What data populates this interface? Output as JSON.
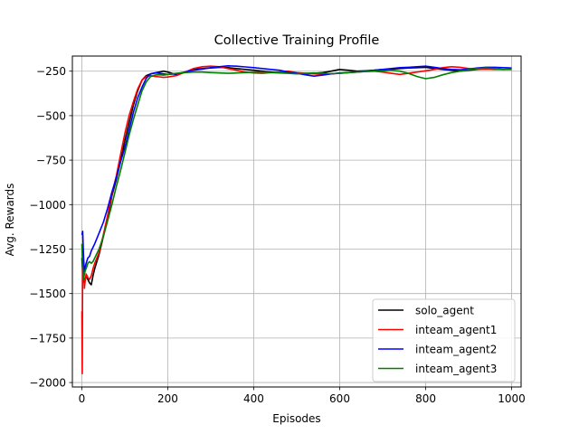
{
  "chart_data": {
    "type": "line",
    "title": "Collective Training Profile",
    "xlabel": "Episodes",
    "ylabel": "Avg. Rewards",
    "xlim": [
      -22,
      1022
    ],
    "ylim": [
      -2025,
      -165
    ],
    "x_ticks": [
      0,
      200,
      400,
      600,
      800,
      1000
    ],
    "x_tick_labels": [
      "0",
      "200",
      "400",
      "600",
      "800",
      "1000"
    ],
    "y_ticks": [
      -250,
      -500,
      -750,
      -1000,
      -1250,
      -1500,
      -1750,
      -2000
    ],
    "y_tick_labels": [
      "−250",
      "−500",
      "−750",
      "−1000",
      "−1250",
      "−1500",
      "−1750",
      "−2000"
    ],
    "grid": true,
    "legend_position": "lower-right",
    "series": [
      {
        "name": "solo_agent",
        "color": "#000000",
        "x": [
          0,
          2,
          4,
          6,
          8,
          10,
          14,
          18,
          22,
          26,
          30,
          40,
          50,
          60,
          70,
          80,
          90,
          100,
          110,
          120,
          130,
          140,
          150,
          160,
          170,
          180,
          190,
          200,
          220,
          240,
          260,
          280,
          300,
          320,
          340,
          360,
          380,
          400,
          420,
          440,
          460,
          480,
          500,
          520,
          540,
          560,
          580,
          600,
          620,
          640,
          660,
          680,
          700,
          720,
          740,
          760,
          780,
          800,
          820,
          840,
          860,
          880,
          900,
          920,
          940,
          960,
          980,
          1000
        ],
        "y": [
          -1300,
          -1380,
          -1430,
          -1440,
          -1420,
          -1400,
          -1420,
          -1440,
          -1450,
          -1400,
          -1360,
          -1280,
          -1180,
          -1080,
          -950,
          -860,
          -760,
          -640,
          -540,
          -440,
          -360,
          -300,
          -275,
          -265,
          -260,
          -255,
          -250,
          -255,
          -270,
          -255,
          -240,
          -235,
          -232,
          -228,
          -230,
          -235,
          -240,
          -245,
          -250,
          -255,
          -258,
          -260,
          -262,
          -265,
          -262,
          -258,
          -250,
          -240,
          -245,
          -250,
          -248,
          -245,
          -240,
          -238,
          -235,
          -232,
          -230,
          -228,
          -235,
          -240,
          -245,
          -250,
          -245,
          -240,
          -235,
          -238,
          -240,
          -240
        ]
      },
      {
        "name": "inteam_agent1",
        "color": "#ff0000",
        "x": [
          0,
          1,
          2,
          4,
          6,
          8,
          10,
          14,
          18,
          22,
          26,
          30,
          40,
          50,
          60,
          70,
          80,
          90,
          100,
          110,
          120,
          130,
          140,
          150,
          160,
          170,
          180,
          190,
          200,
          220,
          240,
          260,
          280,
          300,
          320,
          340,
          360,
          380,
          400,
          420,
          440,
          460,
          480,
          500,
          520,
          540,
          560,
          580,
          600,
          620,
          640,
          660,
          680,
          700,
          720,
          740,
          760,
          780,
          800,
          820,
          840,
          860,
          880,
          900,
          920,
          940,
          960,
          980,
          1000
        ],
        "y": [
          -1600,
          -1950,
          -1300,
          -1360,
          -1470,
          -1420,
          -1390,
          -1410,
          -1420,
          -1400,
          -1360,
          -1330,
          -1270,
          -1170,
          -1060,
          -940,
          -840,
          -720,
          -600,
          -500,
          -420,
          -350,
          -300,
          -280,
          -275,
          -280,
          -282,
          -285,
          -283,
          -275,
          -255,
          -235,
          -225,
          -222,
          -225,
          -235,
          -245,
          -255,
          -260,
          -262,
          -258,
          -255,
          -250,
          -258,
          -262,
          -265,
          -268,
          -265,
          -262,
          -258,
          -255,
          -252,
          -250,
          -255,
          -262,
          -268,
          -262,
          -255,
          -248,
          -240,
          -230,
          -225,
          -228,
          -235,
          -240,
          -238,
          -240,
          -240,
          -238
        ]
      },
      {
        "name": "inteam_agent2",
        "color": "#0000ff",
        "x": [
          0,
          2,
          4,
          6,
          8,
          10,
          14,
          18,
          22,
          26,
          30,
          40,
          50,
          60,
          70,
          80,
          90,
          100,
          110,
          120,
          130,
          140,
          150,
          160,
          170,
          180,
          190,
          200,
          220,
          240,
          260,
          280,
          300,
          320,
          340,
          360,
          380,
          400,
          420,
          440,
          460,
          480,
          500,
          520,
          540,
          560,
          580,
          600,
          620,
          640,
          660,
          680,
          700,
          720,
          740,
          760,
          780,
          800,
          820,
          840,
          860,
          880,
          900,
          920,
          940,
          960,
          980,
          1000
        ],
        "y": [
          -1170,
          -1150,
          -1300,
          -1380,
          -1350,
          -1330,
          -1300,
          -1290,
          -1260,
          -1240,
          -1220,
          -1160,
          -1100,
          -1020,
          -930,
          -850,
          -760,
          -680,
          -580,
          -480,
          -400,
          -340,
          -290,
          -265,
          -260,
          -262,
          -265,
          -268,
          -265,
          -255,
          -245,
          -238,
          -230,
          -225,
          -220,
          -222,
          -226,
          -230,
          -235,
          -240,
          -245,
          -255,
          -262,
          -270,
          -278,
          -272,
          -265,
          -260,
          -258,
          -255,
          -250,
          -245,
          -240,
          -235,
          -230,
          -228,
          -225,
          -222,
          -228,
          -235,
          -240,
          -242,
          -238,
          -232,
          -228,
          -228,
          -230,
          -232
        ]
      },
      {
        "name": "inteam_agent3",
        "color": "#008000",
        "x": [
          0,
          2,
          4,
          6,
          8,
          10,
          14,
          18,
          22,
          26,
          30,
          40,
          50,
          60,
          70,
          80,
          90,
          100,
          110,
          120,
          130,
          140,
          150,
          160,
          170,
          180,
          190,
          200,
          220,
          240,
          260,
          280,
          300,
          320,
          340,
          360,
          380,
          400,
          420,
          440,
          460,
          480,
          500,
          520,
          540,
          560,
          580,
          600,
          620,
          640,
          660,
          680,
          700,
          720,
          740,
          760,
          780,
          800,
          820,
          840,
          860,
          880,
          900,
          920,
          940,
          960,
          980,
          1000
        ],
        "y": [
          -1220,
          -1350,
          -1420,
          -1390,
          -1370,
          -1360,
          -1330,
          -1320,
          -1330,
          -1320,
          -1300,
          -1250,
          -1180,
          -1090,
          -1000,
          -900,
          -810,
          -710,
          -610,
          -520,
          -440,
          -360,
          -310,
          -280,
          -272,
          -270,
          -272,
          -268,
          -262,
          -258,
          -255,
          -255,
          -258,
          -260,
          -262,
          -260,
          -258,
          -256,
          -255,
          -258,
          -260,
          -262,
          -265,
          -262,
          -260,
          -262,
          -264,
          -262,
          -258,
          -255,
          -252,
          -250,
          -248,
          -245,
          -250,
          -262,
          -280,
          -292,
          -285,
          -270,
          -258,
          -250,
          -242,
          -235,
          -232,
          -235,
          -240,
          -238
        ]
      }
    ]
  }
}
